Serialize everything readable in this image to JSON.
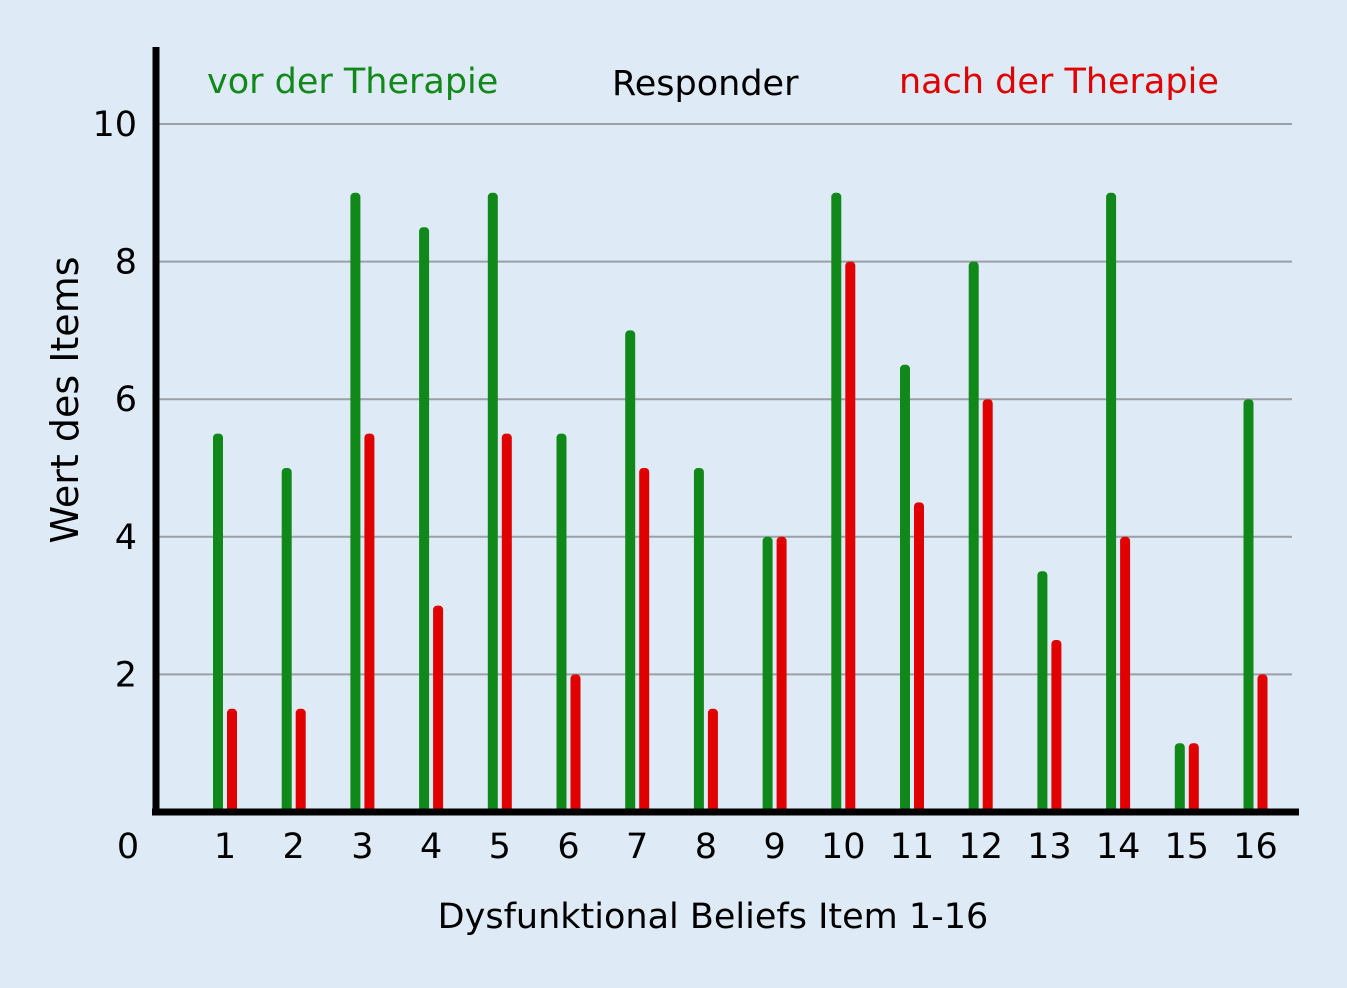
{
  "chart_data": {
    "type": "bar",
    "title": "Responder",
    "xlabel": "Dysfunktional Beliefs Item 1-16",
    "ylabel": "Wert des Items",
    "categories": [
      "1",
      "2",
      "3",
      "4",
      "5",
      "6",
      "7",
      "8",
      "9",
      "10",
      "11",
      "12",
      "13",
      "14",
      "15",
      "16"
    ],
    "y_ticks": [
      "0",
      "2",
      "4",
      "6",
      "8",
      "10"
    ],
    "ylim": [
      0,
      11
    ],
    "grid": true,
    "series": [
      {
        "name": "vor der Therapie",
        "color": "#11891a",
        "values": [
          5.5,
          5,
          9,
          8.5,
          9,
          5.5,
          7,
          5,
          4,
          9,
          6.5,
          8,
          3.5,
          9,
          1,
          6
        ]
      },
      {
        "name": "nach der Therapie",
        "color": "#e00000",
        "values": [
          1.5,
          1.5,
          5.5,
          3,
          5.5,
          2,
          5,
          1.5,
          4,
          8,
          4.5,
          6,
          2.5,
          4,
          1,
          2
        ]
      }
    ]
  }
}
